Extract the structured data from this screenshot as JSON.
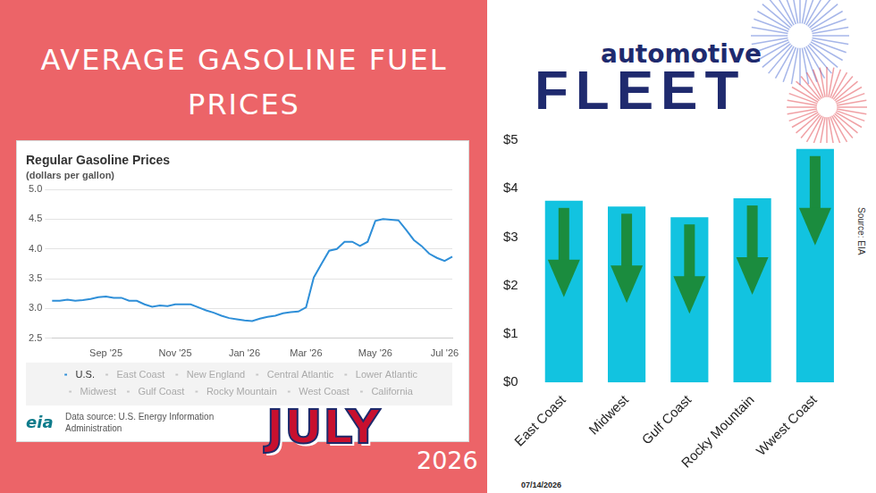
{
  "header": {
    "title": "AVERAGE GASOLINE FUEL PRICES"
  },
  "logo": {
    "line1": "automotive",
    "line2": "FLEET"
  },
  "badge": {
    "month": "JULY",
    "year": "2026"
  },
  "chart_data": [
    {
      "type": "line",
      "title": "Regular Gasoline Prices",
      "subtitle": "(dollars per gallon)",
      "categories": [
        null,
        null,
        null,
        null,
        null,
        null,
        null,
        "Sep '25",
        null,
        null,
        null,
        null,
        null,
        null,
        null,
        null,
        "Nov '25",
        null,
        null,
        null,
        null,
        null,
        null,
        null,
        null,
        "Jan '26",
        null,
        null,
        null,
        null,
        null,
        null,
        null,
        "Mar '26",
        null,
        null,
        null,
        null,
        null,
        null,
        null,
        null,
        "May '26",
        null,
        null,
        null,
        null,
        null,
        null,
        null,
        null,
        "Jul '26",
        null
      ],
      "series": [
        {
          "name": "U.S.",
          "color": "#2f8fd8",
          "values": [
            3.13,
            3.13,
            3.15,
            3.13,
            3.14,
            3.16,
            3.19,
            3.2,
            3.18,
            3.18,
            3.13,
            3.13,
            3.07,
            3.03,
            3.05,
            3.04,
            3.07,
            3.07,
            3.07,
            3.02,
            2.97,
            2.93,
            2.88,
            2.84,
            2.82,
            2.8,
            2.79,
            2.83,
            2.86,
            2.88,
            2.92,
            2.94,
            2.95,
            3.02,
            3.52,
            3.75,
            3.97,
            4.0,
            4.12,
            4.12,
            4.05,
            4.12,
            4.47,
            4.5,
            4.49,
            4.48,
            4.32,
            4.15,
            4.05,
            3.92,
            3.85,
            3.8,
            3.87
          ]
        },
        {
          "name": "East Coast",
          "color": "#c8c8c8",
          "values": [
            null,
            null,
            null,
            null,
            null,
            null,
            null,
            null,
            null,
            null,
            null,
            null,
            null,
            null,
            null,
            null,
            null,
            null,
            null,
            null,
            null,
            null,
            null,
            null,
            null,
            null,
            null,
            null,
            null,
            null,
            null,
            null,
            null,
            null,
            null,
            null,
            null,
            null,
            null,
            null,
            null,
            null,
            null,
            null,
            null,
            null,
            null,
            null,
            null,
            null,
            null,
            null,
            null
          ]
        },
        {
          "name": "New England",
          "color": "#c8c8c8",
          "values": [
            null,
            null,
            null,
            null,
            null,
            null,
            null,
            null,
            null,
            null,
            null,
            null,
            null,
            null,
            null,
            null,
            null,
            null,
            null,
            null,
            null,
            null,
            null,
            null,
            null,
            null,
            null,
            null,
            null,
            null,
            null,
            null,
            null,
            null,
            null,
            null,
            null,
            null,
            null,
            null,
            null,
            null,
            null,
            null,
            null,
            null,
            null,
            null,
            null,
            null,
            null,
            null,
            null
          ]
        },
        {
          "name": "Central Atlantic",
          "color": "#c8c8c8",
          "values": [
            null,
            null,
            null,
            null,
            null,
            null,
            null,
            null,
            null,
            null,
            null,
            null,
            null,
            null,
            null,
            null,
            null,
            null,
            null,
            null,
            null,
            null,
            null,
            null,
            null,
            null,
            null,
            null,
            null,
            null,
            null,
            null,
            null,
            null,
            null,
            null,
            null,
            null,
            null,
            null,
            null,
            null,
            null,
            null,
            null,
            null,
            null,
            null,
            null,
            null,
            null,
            null,
            null
          ]
        },
        {
          "name": "Lower Atlantic",
          "color": "#c8c8c8",
          "values": [
            null,
            null,
            null,
            null,
            null,
            null,
            null,
            null,
            null,
            null,
            null,
            null,
            null,
            null,
            null,
            null,
            null,
            null,
            null,
            null,
            null,
            null,
            null,
            null,
            null,
            null,
            null,
            null,
            null,
            null,
            null,
            null,
            null,
            null,
            null,
            null,
            null,
            null,
            null,
            null,
            null,
            null,
            null,
            null,
            null,
            null,
            null,
            null,
            null,
            null,
            null,
            null,
            null
          ]
        },
        {
          "name": "Midwest",
          "color": "#c8c8c8",
          "values": [
            null,
            null,
            null,
            null,
            null,
            null,
            null,
            null,
            null,
            null,
            null,
            null,
            null,
            null,
            null,
            null,
            null,
            null,
            null,
            null,
            null,
            null,
            null,
            null,
            null,
            null,
            null,
            null,
            null,
            null,
            null,
            null,
            null,
            null,
            null,
            null,
            null,
            null,
            null,
            null,
            null,
            null,
            null,
            null,
            null,
            null,
            null,
            null,
            null,
            null,
            null,
            null,
            null
          ]
        },
        {
          "name": "Gulf Coast",
          "color": "#c8c8c8",
          "values": [
            null,
            null,
            null,
            null,
            null,
            null,
            null,
            null,
            null,
            null,
            null,
            null,
            null,
            null,
            null,
            null,
            null,
            null,
            null,
            null,
            null,
            null,
            null,
            null,
            null,
            null,
            null,
            null,
            null,
            null,
            null,
            null,
            null,
            null,
            null,
            null,
            null,
            null,
            null,
            null,
            null,
            null,
            null,
            null,
            null,
            null,
            null,
            null,
            null,
            null,
            null,
            null,
            null
          ]
        },
        {
          "name": "Rocky Mountain",
          "color": "#c8c8c8",
          "values": [
            null,
            null,
            null,
            null,
            null,
            null,
            null,
            null,
            null,
            null,
            null,
            null,
            null,
            null,
            null,
            null,
            null,
            null,
            null,
            null,
            null,
            null,
            null,
            null,
            null,
            null,
            null,
            null,
            null,
            null,
            null,
            null,
            null,
            null,
            null,
            null,
            null,
            null,
            null,
            null,
            null,
            null,
            null,
            null,
            null,
            null,
            null,
            null,
            null,
            null,
            null,
            null,
            null
          ]
        },
        {
          "name": "West Coast",
          "color": "#c8c8c8",
          "values": [
            null,
            null,
            null,
            null,
            null,
            null,
            null,
            null,
            null,
            null,
            null,
            null,
            null,
            null,
            null,
            null,
            null,
            null,
            null,
            null,
            null,
            null,
            null,
            null,
            null,
            null,
            null,
            null,
            null,
            null,
            null,
            null,
            null,
            null,
            null,
            null,
            null,
            null,
            null,
            null,
            null,
            null,
            null,
            null,
            null,
            null,
            null,
            null,
            null,
            null,
            null,
            null,
            null
          ]
        },
        {
          "name": "California",
          "color": "#c8c8c8",
          "values": [
            null,
            null,
            null,
            null,
            null,
            null,
            null,
            null,
            null,
            null,
            null,
            null,
            null,
            null,
            null,
            null,
            null,
            null,
            null,
            null,
            null,
            null,
            null,
            null,
            null,
            null,
            null,
            null,
            null,
            null,
            null,
            null,
            null,
            null,
            null,
            null,
            null,
            null,
            null,
            null,
            null,
            null,
            null,
            null,
            null,
            null,
            null,
            null,
            null,
            null,
            null,
            null,
            null
          ]
        }
      ],
      "ylim": [
        2.5,
        5
      ],
      "yticks": [
        2.5,
        {
          "value": 3,
          "label": "3.0"
        },
        3.5,
        {
          "value": 4,
          "label": "4.0"
        },
        4.5,
        {
          "value": 5,
          "label": "5.0"
        }
      ],
      "grid": true,
      "legend": "bottom",
      "source_logo": "eia",
      "source": "Data source: U.S. Energy Information Administration"
    },
    {
      "type": "bar",
      "categories": [
        "East Coast",
        "Midwest",
        "Gulf Coast",
        "Rocky Mountain",
        "Wwest Coast"
      ],
      "values": [
        3.75,
        3.63,
        3.41,
        3.8,
        4.82
      ],
      "color": "#12c3e0",
      "ylim": [
        0,
        5
      ],
      "yticks": [
        {
          "value": 0,
          "label": "$0"
        },
        {
          "value": 1,
          "label": "$1"
        },
        {
          "value": 2,
          "label": "$2"
        },
        {
          "value": 3,
          "label": "$3"
        },
        {
          "value": 4,
          "label": "$4"
        },
        {
          "value": 5,
          "label": "$5"
        }
      ],
      "grid": false,
      "date": "07/14/2026",
      "source": "Source: EIA"
    }
  ]
}
